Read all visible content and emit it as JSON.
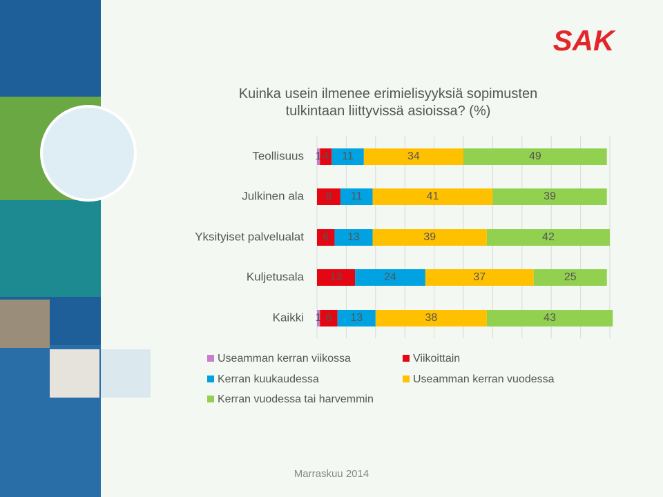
{
  "logo": "SAK",
  "footer": "Marraskuu 2014",
  "chart_data": {
    "type": "stacked-hbar",
    "title": "Kuinka usein ilmenee erimielisyyksiä sopimusten tulkintaan liittyvissä asioissa? (%)",
    "categories": [
      "Teollisuus",
      "Julkinen ala",
      "Yksityiset palvelualat",
      "Kuljetusala",
      "Kaikki"
    ],
    "series": [
      {
        "name": "Useamman kerran viikossa",
        "color": "#c77fc9",
        "values": [
          1,
          null,
          null,
          null,
          1
        ]
      },
      {
        "name": "Viikoittain",
        "color": "#e30613",
        "values": [
          4,
          8,
          6,
          13,
          6
        ]
      },
      {
        "name": "Kerran kuukaudessa",
        "color": "#00a2e1",
        "values": [
          11,
          11,
          13,
          24,
          13
        ]
      },
      {
        "name": "Useamman kerran vuodessa",
        "color": "#ffc000",
        "values": [
          34,
          41,
          39,
          37,
          38
        ]
      },
      {
        "name": "Kerran vuodessa tai harvemmin",
        "color": "#92d050",
        "values": [
          49,
          39,
          42,
          25,
          43
        ]
      }
    ],
    "xlim": [
      0,
      100
    ],
    "xticks": [
      0,
      10,
      20,
      30,
      40,
      50,
      60,
      70,
      80,
      90,
      100
    ],
    "grid": true
  }
}
